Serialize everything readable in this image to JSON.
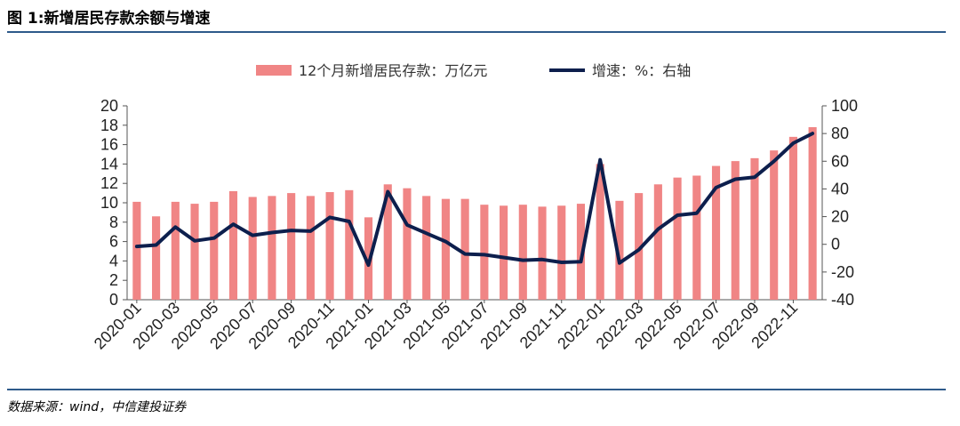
{
  "title": "图 1:新增居民存款余额与增速",
  "source": "数据来源：wind，中信建投证券",
  "colors": {
    "bar": "#f08585",
    "line": "#0d1f4d",
    "rule": "#2e5a8a"
  },
  "chart_data": {
    "type": "bar",
    "legend_position": "top-center",
    "grid": false,
    "categories": [
      "2020-01",
      "2020-02",
      "2020-03",
      "2020-04",
      "2020-05",
      "2020-06",
      "2020-07",
      "2020-08",
      "2020-09",
      "2020-10",
      "2020-11",
      "2020-12",
      "2021-01",
      "2021-02",
      "2021-03",
      "2021-04",
      "2021-05",
      "2021-06",
      "2021-07",
      "2021-08",
      "2021-09",
      "2021-10",
      "2021-11",
      "2021-12",
      "2022-01",
      "2022-02",
      "2022-03",
      "2022-04",
      "2022-05",
      "2022-06",
      "2022-07",
      "2022-08",
      "2022-09",
      "2022-10",
      "2022-11",
      "2022-12"
    ],
    "x_tick_labels": [
      "2020-01",
      "2020-03",
      "2020-05",
      "2020-07",
      "2020-09",
      "2020-11",
      "2021-01",
      "2021-03",
      "2021-05",
      "2021-07",
      "2021-09",
      "2021-11",
      "2022-01",
      "2022-03",
      "2022-05",
      "2022-07",
      "2022-09",
      "2022-11"
    ],
    "series": [
      {
        "name": "12个月新增居民存款：万亿元",
        "type": "bar",
        "axis": "left",
        "values": [
          10.1,
          8.6,
          10.1,
          9.9,
          10.1,
          11.2,
          10.6,
          10.7,
          11.0,
          10.7,
          11.1,
          11.3,
          8.5,
          11.9,
          11.5,
          10.7,
          10.4,
          10.4,
          9.8,
          9.7,
          9.8,
          9.6,
          9.7,
          9.9,
          14.0,
          10.2,
          11.0,
          11.9,
          12.6,
          12.8,
          13.8,
          14.3,
          14.6,
          15.4,
          16.8,
          17.8
        ]
      },
      {
        "name": "增速：%：右轴",
        "type": "line",
        "axis": "right",
        "values": [
          -1.5,
          -0.5,
          12.5,
          2.5,
          4.5,
          14.5,
          6.5,
          8.5,
          10.0,
          9.5,
          19.5,
          16.5,
          -15.0,
          38.0,
          14.0,
          8.0,
          2.0,
          -7.0,
          -7.5,
          -9.5,
          -11.5,
          -11.0,
          -13.0,
          -12.5,
          61.0,
          -13.5,
          -4.0,
          11.0,
          21.0,
          22.5,
          41.0,
          47.0,
          48.5,
          60.0,
          73.0,
          80.0
        ]
      }
    ],
    "ylim_left": [
      0,
      20
    ],
    "yticks_left": [
      0,
      2,
      4,
      6,
      8,
      10,
      12,
      14,
      16,
      18,
      20
    ],
    "ylim_right": [
      -40,
      100
    ],
    "yticks_right": [
      -40,
      -20,
      0,
      20,
      40,
      60,
      80,
      100
    ]
  }
}
